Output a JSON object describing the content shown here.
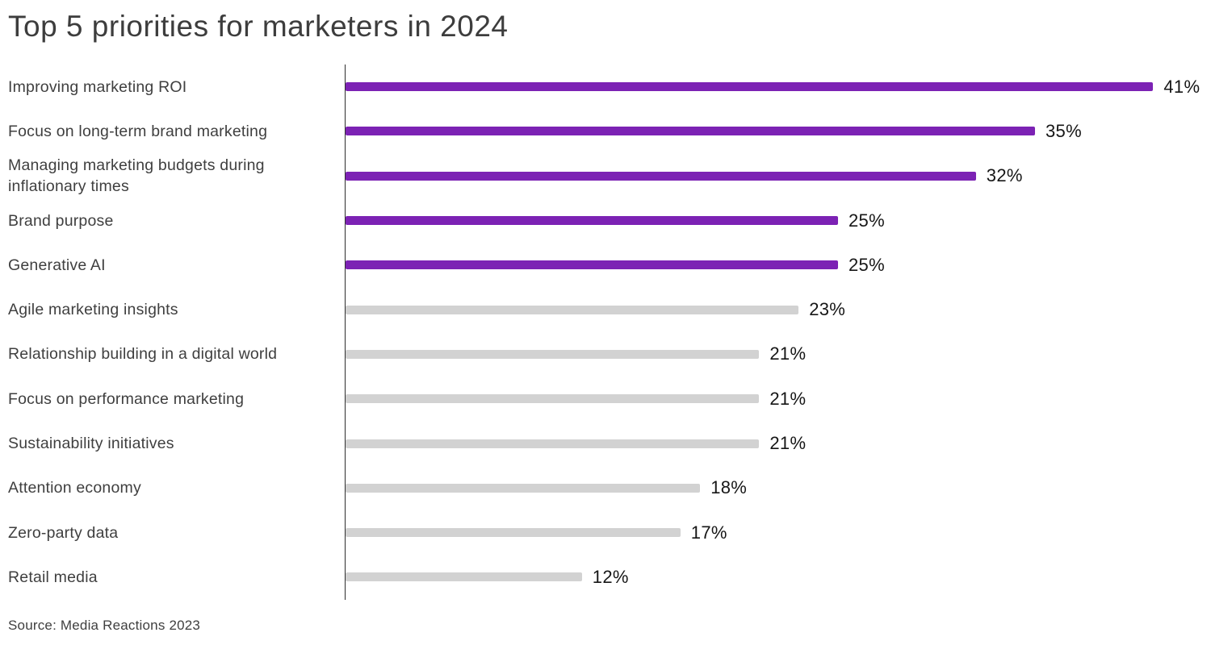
{
  "page": {
    "title": "Top 5 priorities for marketers in 2024",
    "source": "Source: Media Reactions 2023"
  },
  "chart_data": {
    "type": "bar",
    "orientation": "horizontal",
    "title": "Top 5 priorities for marketers in 2024",
    "categories": [
      "Improving marketing ROI",
      "Focus on long-term brand marketing",
      "Managing marketing budgets during inflationary times",
      "Brand purpose",
      "Generative AI",
      "Agile marketing insights",
      "Relationship building in a digital world",
      "Focus on performance marketing",
      "Sustainability initiatives",
      "Attention economy",
      "Zero-party data",
      "Retail media"
    ],
    "values": [
      41,
      35,
      32,
      25,
      25,
      23,
      21,
      21,
      21,
      18,
      17,
      12
    ],
    "value_suffix": "%",
    "highlighted_count": 5,
    "colors": {
      "highlight": "#7c22b4",
      "default": "#d2d2d2"
    },
    "axis_line_color": "#2e2e2e",
    "xlim": [
      0,
      43
    ],
    "grid": false,
    "legend": "none",
    "source": "Source: Media Reactions 2023"
  }
}
